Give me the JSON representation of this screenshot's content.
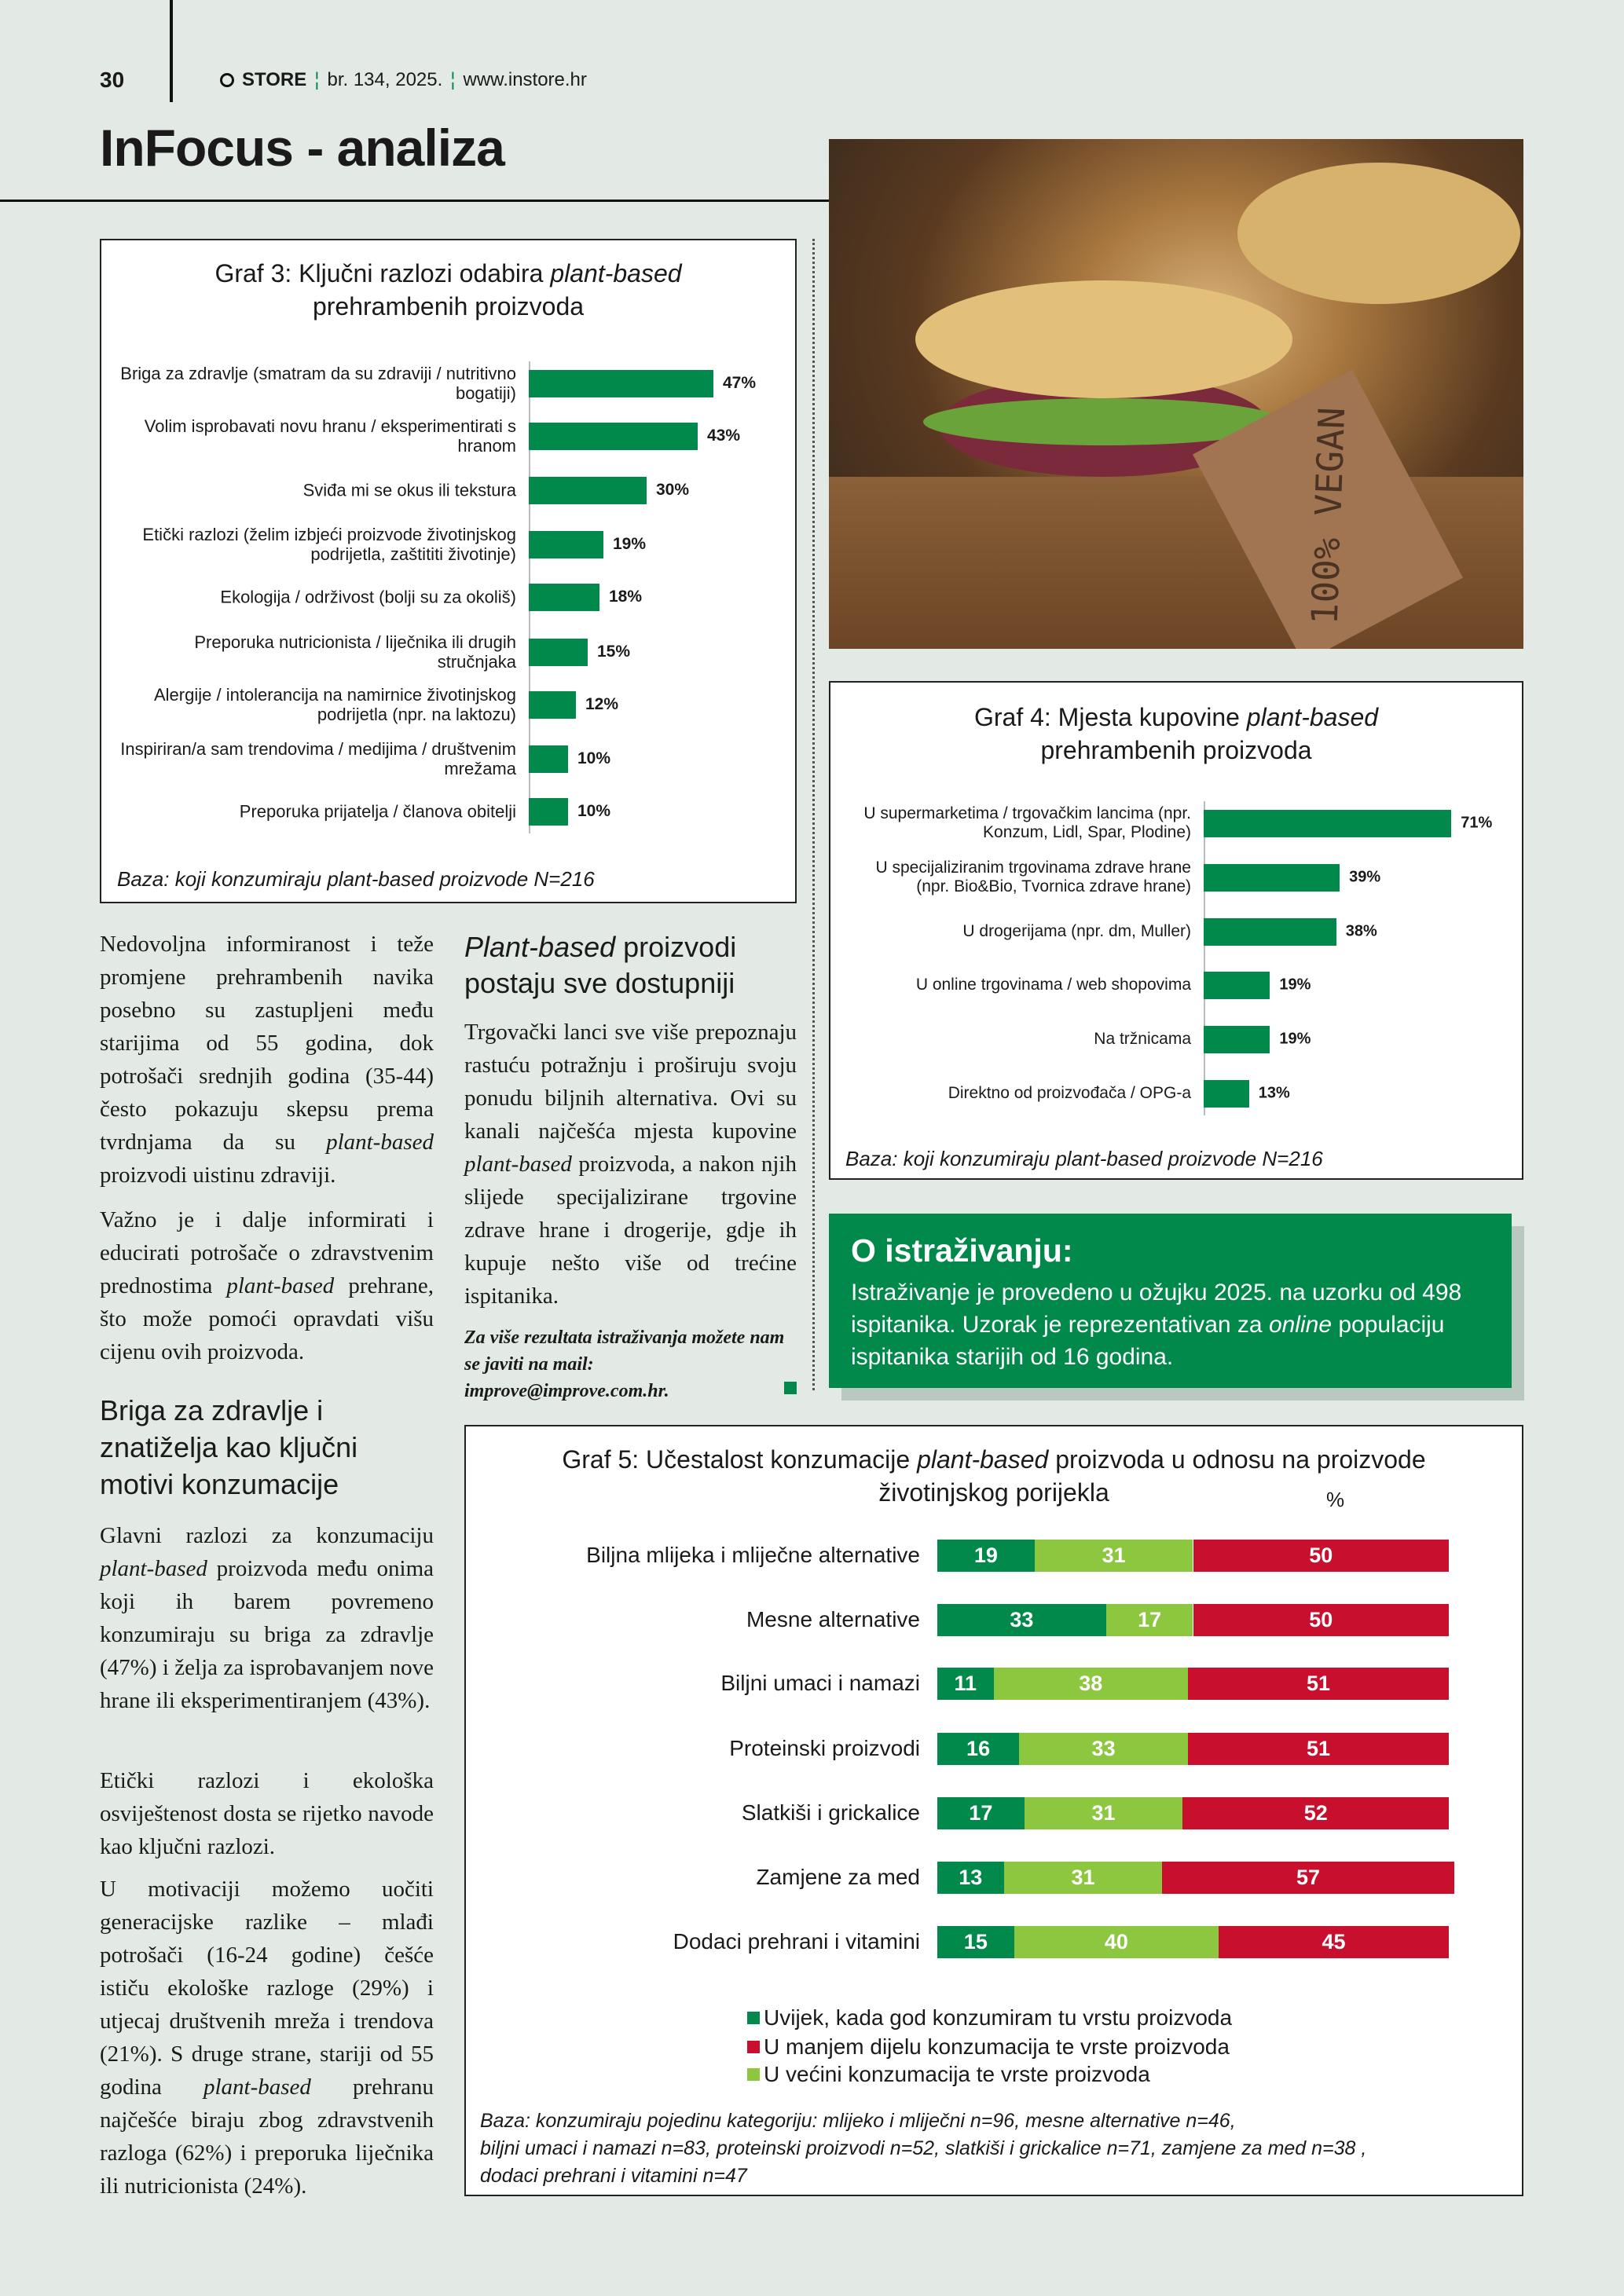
{
  "header": {
    "page": "30",
    "brand": "STORE",
    "issue": "br. 134, 2025.",
    "site": "www.instore.hr"
  },
  "title": "InFocus - analiza",
  "photo": {
    "tag": "100% VEGAN"
  },
  "graf3": {
    "type": "bar",
    "title": [
      [
        "Graf 3: Ključni razlozi odabira ",
        {
          "em": "plant-based"
        }
      ],
      [
        "prehrambenih proizvoda"
      ]
    ],
    "categories": [
      "Briga za zdravlje (smatram da su zdraviji / nutritivno bogatiji)",
      "Volim isprobavati novu hranu / eksperimentirati s hranom",
      "Sviđa mi se okus ili tekstura",
      "Etički razlozi (želim izbjeći proizvode životinjskog podrijetla, zaštititi životinje)",
      "Ekologija / održivost (bolji su za okoliš)",
      "Preporuka nutricionista / liječnika ili drugih stručnjaka",
      "Alergije / intolerancija na namirnice životinjskog podrijetla (npr. na laktozu)",
      "Inspiriran/a sam trendovima / medijima / društvenim mrežama",
      "Preporuka prijatelja / članova obitelji"
    ],
    "values": [
      47,
      43,
      30,
      19,
      18,
      15,
      12,
      10,
      10
    ],
    "value_labels": [
      "47%",
      "43%",
      "30%",
      "19%",
      "18%",
      "15%",
      "12%",
      "10%",
      "10%"
    ],
    "color": "#00894b",
    "note": "Baza: koji konzumiraju plant-based proizvode N=216"
  },
  "graf4": {
    "type": "bar",
    "title": [
      [
        "Graf 4: Mjesta kupovine ",
        {
          "em": "plant-based"
        }
      ],
      [
        "prehrambenih proizvoda"
      ]
    ],
    "categories": [
      "U supermarketima / trgovačkim lancima (npr. Konzum, Lidl, Spar, Plodine)",
      "U specijaliziranim trgovinama zdrave hrane (npr. Bio&Bio, Tvornica zdrave hrane)",
      "U drogerijama (npr. dm, Muller)",
      "U online trgovinama / web shopovima",
      "Na tržnicama",
      "Direktno od proizvođača / OPG-a"
    ],
    "values": [
      71,
      39,
      38,
      19,
      19,
      13
    ],
    "value_labels": [
      "71%",
      "39%",
      "38%",
      "19%",
      "19%",
      "13%"
    ],
    "color": "#00894b",
    "note": "Baza: koji konzumiraju plant-based proizvode N=216"
  },
  "info": {
    "title": "O istraživanju:",
    "text": [
      "Istraživanje je provedeno  u ožujku 2025. na uzorku od 498 ispitanika. Uzorak je reprezentativan za ",
      {
        "em": "online"
      },
      " populaciju ispitanika starijih od 16 godina."
    ]
  },
  "graf5": {
    "type": "stacked-bar",
    "title": [
      [
        "Graf 5: Učestalost konzumacije ",
        {
          "em": "plant-based"
        },
        " proizvoda u odnosu na proizvode"
      ],
      [
        "životinjskog porijekla"
      ]
    ],
    "unit": "%",
    "categories": [
      "Biljna mlijeka i mliječne alternative",
      "Mesne alternative",
      "Biljni umaci i namazi",
      "Proteinski proizvodi",
      "Slatkiši i grickalice",
      "Zamjene za med",
      "Dodaci prehrani i vitamini"
    ],
    "series": [
      {
        "name": "Uvijek, kada god konzumiram tu vrstu proizvoda",
        "color": "#00894b",
        "values": [
          19,
          33,
          11,
          16,
          17,
          13,
          15
        ]
      },
      {
        "name": "U manjem dijelu konzumacija te vrste proizvoda",
        "color": "#c8102e",
        "values": [
          50,
          50,
          51,
          51,
          52,
          57,
          45
        ]
      },
      {
        "name": "U većini konzumacija te vrste proizvoda",
        "color": "#8dc63f",
        "values": [
          31,
          17,
          38,
          33,
          31,
          31,
          40
        ]
      }
    ],
    "note": [
      "Baza: konzumiraju pojedinu kategoriju: mlijeko i mliječni n=96, mesne alternative n=46,",
      "biljni umaci i namazi n=83, proteinski proizvodi n=52, slatkiši i grickalice n=71, zamjene za med n=38 ,",
      "dodaci prehrani i vitamini n=47"
    ]
  },
  "article": {
    "p1": [
      "Nedovoljna informiranost i teže promjene prehrambenih navika posebno su zastupljeni među starijima od 55 godina, dok potrošači srednjih godina (35-44) često pokazuju skepsu prema tvrdnjama da su ",
      {
        "em": "plant-based"
      },
      " proizvodi uistinu zdraviji."
    ],
    "p2": [
      "Važno je i dalje informirati i educirati potrošače o zdravstvenim prednostima ",
      {
        "em": "plant-based"
      },
      " prehrane, što može pomoći opravdati višu cijenu ovih proizvoda."
    ],
    "heading2": [
      "Briga za zdravlje i znatiželja kao ključni motivi konzumacije"
    ],
    "p3": [
      "Glavni razlozi za konzumaciju ",
      {
        "em": "plant-based"
      },
      " proizvoda među onima koji ih barem povremeno konzumiraju su briga za zdravlje (47%) i želja za isprobavanjem nove hrane ili eksperimentiranjem (43%)."
    ],
    "p4": [
      "Etički razlozi i ekološka osviještenost dosta se rijetko navode kao ključni razlozi."
    ],
    "p5": [
      "U motivaciji možemo uočiti generacijske razlike – mlađi potrošači (16-24 godine) češće ističu ekološke razloge (29%) i utjecaj društvenih mreža i trendova (21%). S druge strane, stariji od 55 godina ",
      {
        "em": "plant-based"
      },
      " prehranu najčešće biraju zbog zdravstvenih razloga (62%) i preporuka liječnika ili nutricionista (24%)."
    ],
    "heading3": [
      {
        "em": "Plant-based"
      },
      " proizvodi postaju sve dostupniji"
    ],
    "p6": [
      "Trgovački lanci sve više prepoznaju rastuću potražnju i proširuju svoju ponudu biljnih alternativa. Ovi su kanali najčešća mjesta kupovine ",
      {
        "em": "plant-based"
      },
      " proizvoda, a nakon njih slijede specijalizirane trgovine zdrave hrane i drogerije, gdje ih kupuje nešto više od trećine ispitanika."
    ],
    "contact": [
      "Za više rezultata istraživanja možete nam se javiti na mail: improve@improve.com.hr."
    ]
  }
}
